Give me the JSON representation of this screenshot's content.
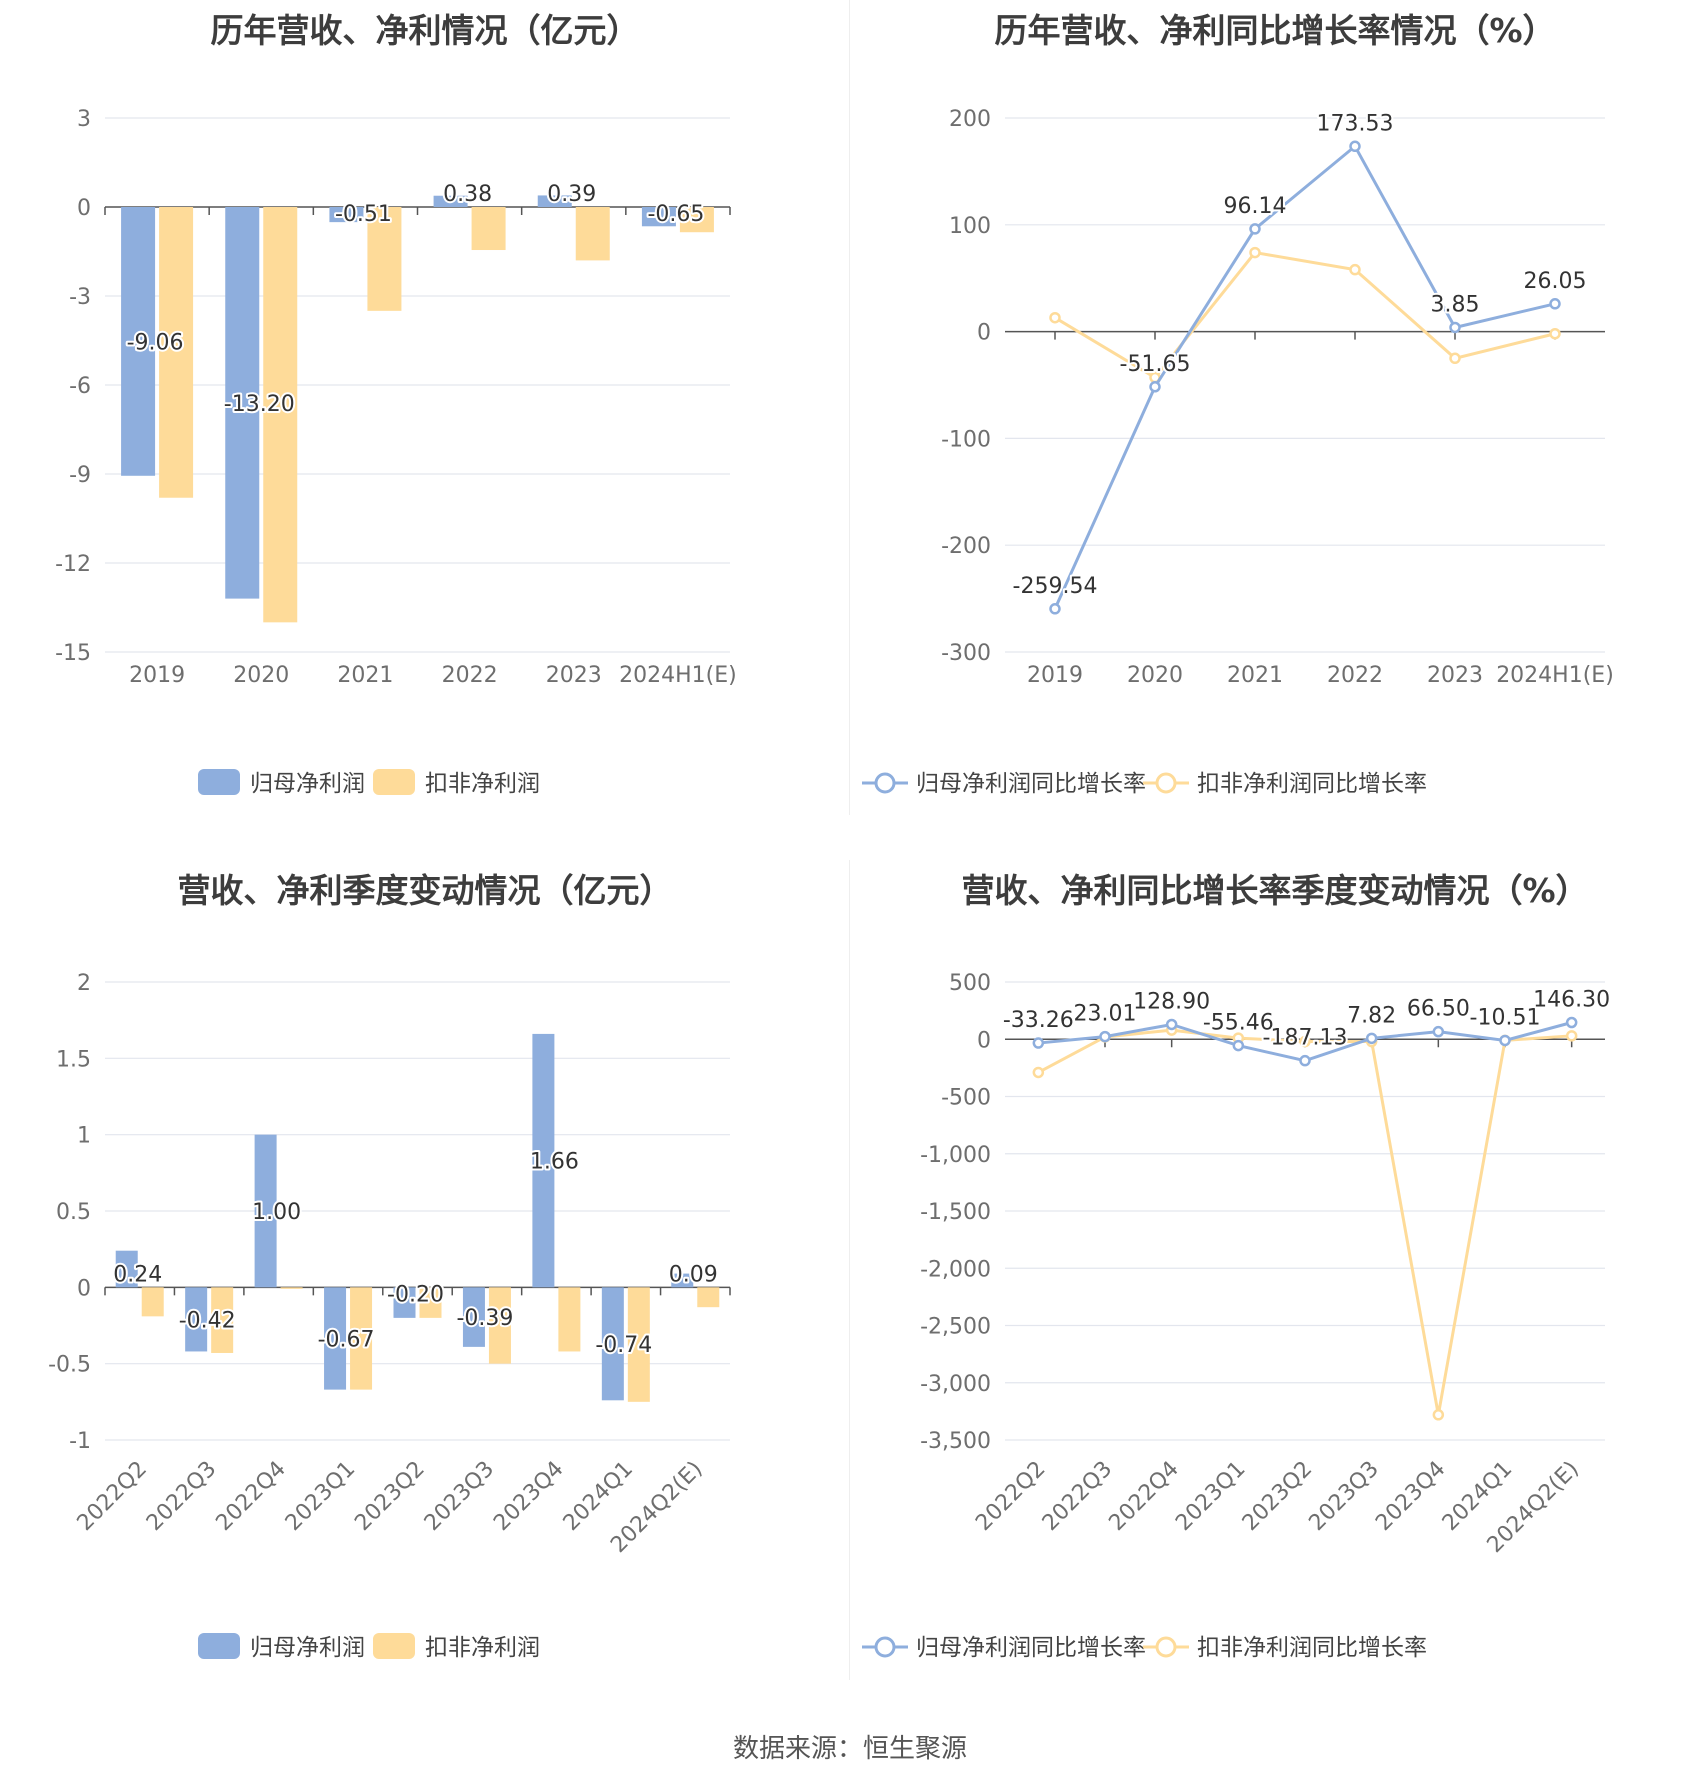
{
  "source_label": "数据来源：恒生聚源",
  "chart_data": [
    {
      "id": "annual_profit",
      "type": "bar",
      "title": "历年营收、净利情况（亿元）",
      "categories": [
        "2019",
        "2020",
        "2021",
        "2022",
        "2023",
        "2024H1(E)"
      ],
      "yticks": [
        "3",
        "0",
        "-3",
        "-6",
        "-9",
        "-12",
        "-15"
      ],
      "ylim": [
        -15,
        3
      ],
      "grid": true,
      "legend_position": "bottom",
      "series": [
        {
          "name": "归母净利润",
          "color": "#8eaedd",
          "values": [
            -9.06,
            -13.2,
            -0.51,
            0.38,
            0.39,
            -0.65
          ],
          "labels": [
            "-9.06",
            "-13.20",
            "-0.51",
            "0.38",
            "0.39",
            "-0.65"
          ]
        },
        {
          "name": "扣非净利润",
          "color": "#fedb99",
          "values": [
            -9.8,
            -14.0,
            -3.5,
            -1.45,
            -1.8,
            -0.85
          ]
        }
      ]
    },
    {
      "id": "annual_growth",
      "type": "line",
      "title": "历年营收、净利同比增长率情况（%）",
      "categories": [
        "2019",
        "2020",
        "2021",
        "2022",
        "2023",
        "2024H1(E)"
      ],
      "yticks": [
        "200",
        "100",
        "0",
        "-100",
        "-200",
        "-300"
      ],
      "ylim": [
        -300,
        200
      ],
      "grid": true,
      "legend_position": "bottom",
      "series": [
        {
          "name": "归母净利润同比增长率",
          "color": "#8eaedd",
          "values": [
            -259.54,
            -51.65,
            96.14,
            173.53,
            3.85,
            26.05
          ],
          "labels": [
            "-259.54",
            "-51.65",
            "96.14",
            "173.53",
            "3.85",
            "26.05"
          ]
        },
        {
          "name": "扣非净利润同比增长率",
          "color": "#fedb99",
          "values": [
            13,
            -43,
            74,
            58,
            -25,
            -2
          ]
        }
      ]
    },
    {
      "id": "quarterly_profit",
      "type": "bar",
      "title": "营收、净利季度变动情况（亿元）",
      "categories": [
        "2022Q2",
        "2022Q3",
        "2022Q4",
        "2023Q1",
        "2023Q2",
        "2023Q3",
        "2023Q4",
        "2024Q1",
        "2024Q2(E)"
      ],
      "yticks": [
        "2",
        "1.5",
        "1",
        "0.5",
        "0",
        "-0.5",
        "-1"
      ],
      "ylim": [
        -1,
        2
      ],
      "grid": true,
      "legend_position": "bottom",
      "series": [
        {
          "name": "归母净利润",
          "color": "#8eaedd",
          "values": [
            0.24,
            -0.42,
            1.0,
            -0.67,
            -0.2,
            -0.39,
            1.66,
            -0.74,
            0.09
          ],
          "labels": [
            "0.24",
            "-0.42",
            "1.00",
            "-0.67",
            "-0.20",
            "-0.39",
            "1.66",
            "-0.74",
            "0.09"
          ]
        },
        {
          "name": "扣非净利润",
          "color": "#fedb99",
          "values": [
            -0.19,
            -0.43,
            -0.01,
            -0.67,
            -0.2,
            -0.5,
            -0.42,
            -0.75,
            -0.13
          ]
        }
      ]
    },
    {
      "id": "quarterly_growth",
      "type": "line",
      "title": "营收、净利同比增长率季度变动情况（%）",
      "categories": [
        "2022Q2",
        "2022Q3",
        "2022Q4",
        "2023Q1",
        "2023Q2",
        "2023Q3",
        "2023Q4",
        "2024Q1",
        "2024Q2(E)"
      ],
      "yticks": [
        "500",
        "0",
        "-500",
        "-1,000",
        "-1,500",
        "-2,000",
        "-2,500",
        "-3,000",
        "-3,500"
      ],
      "ylim": [
        -3500,
        500
      ],
      "grid": true,
      "legend_position": "bottom",
      "series": [
        {
          "name": "归母净利润同比增长率",
          "color": "#8eaedd",
          "values": [
            -33.26,
            23.01,
            128.9,
            -55.46,
            -187.13,
            7.82,
            66.5,
            -10.51,
            146.3
          ],
          "labels": [
            "-33.26",
            "23.01",
            "128.90",
            "-55.46",
            "-187.13",
            "7.82",
            "66.50",
            "-10.51",
            "146.30"
          ]
        },
        {
          "name": "扣非净利润同比增长率",
          "color": "#fedb99",
          "values": [
            -290,
            20,
            80,
            10,
            -20,
            -20,
            -3280,
            -10,
            30
          ]
        }
      ]
    }
  ]
}
